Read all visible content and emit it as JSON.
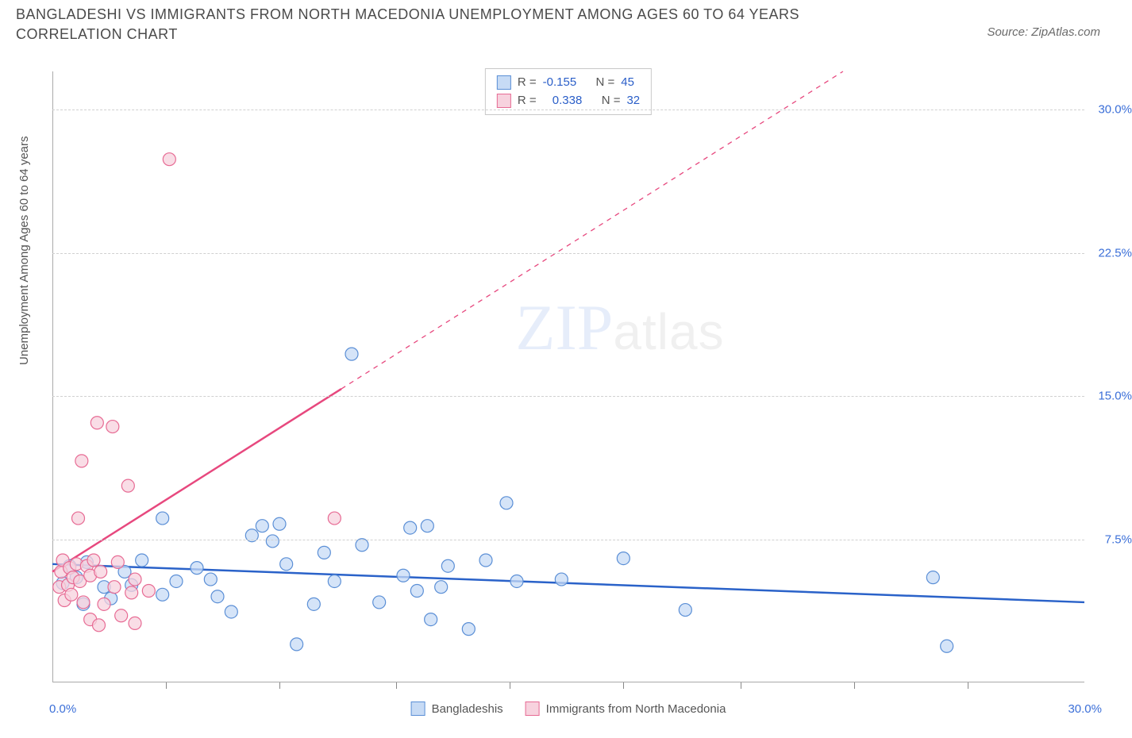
{
  "title": "BANGLADESHI VS IMMIGRANTS FROM NORTH MACEDONIA UNEMPLOYMENT AMONG AGES 60 TO 64 YEARS CORRELATION CHART",
  "source": "Source: ZipAtlas.com",
  "watermark_a": "ZIP",
  "watermark_b": "atlas",
  "y_axis_label": "Unemployment Among Ages 60 to 64 years",
  "chart": {
    "type": "scatter",
    "xlim": [
      0,
      30
    ],
    "ylim": [
      0,
      32
    ],
    "x_tick_positions": [
      3.3,
      6.6,
      10,
      13.3,
      16.6,
      20,
      23.3,
      26.6
    ],
    "y_ticks": [
      7.5,
      15.0,
      22.5,
      30.0
    ],
    "y_tick_labels": [
      "7.5%",
      "15.0%",
      "22.5%",
      "30.0%"
    ],
    "x_min_label": "0.0%",
    "x_max_label": "30.0%",
    "grid_color": "#d0d0d0",
    "background_color": "#ffffff",
    "marker_radius": 8,
    "marker_stroke_width": 1.2,
    "line_width_solid": 2.5,
    "line_width_dash": 1.3
  },
  "series": [
    {
      "key": "bangladeshis",
      "label": "Bangladeshis",
      "fill": "#c7dbf5",
      "stroke": "#5b8fd6",
      "line_color": "#2a62c9",
      "r_label": "R = ",
      "r_value": "-0.155",
      "n_label": "N = ",
      "n_value": "45",
      "regression": {
        "x1": 0,
        "y1": 6.2,
        "x2": 30,
        "y2": 4.2,
        "dash_from_x": 30
      },
      "points": [
        [
          0.3,
          5.2
        ],
        [
          0.5,
          6.1
        ],
        [
          0.7,
          5.5
        ],
        [
          1.0,
          6.3
        ],
        [
          1.5,
          5.0
        ],
        [
          2.1,
          5.8
        ],
        [
          2.6,
          6.4
        ],
        [
          3.2,
          4.6
        ],
        [
          3.2,
          8.6
        ],
        [
          3.6,
          5.3
        ],
        [
          4.6,
          5.4
        ],
        [
          4.8,
          4.5
        ],
        [
          5.2,
          3.7
        ],
        [
          6.4,
          7.4
        ],
        [
          6.6,
          8.3
        ],
        [
          6.8,
          6.2
        ],
        [
          7.1,
          2.0
        ],
        [
          7.6,
          4.1
        ],
        [
          7.9,
          6.8
        ],
        [
          8.2,
          5.3
        ],
        [
          8.7,
          17.2
        ],
        [
          9.0,
          7.2
        ],
        [
          9.5,
          4.2
        ],
        [
          10.2,
          5.6
        ],
        [
          10.4,
          8.1
        ],
        [
          10.6,
          4.8
        ],
        [
          10.9,
          8.2
        ],
        [
          11.0,
          3.3
        ],
        [
          11.3,
          5.0
        ],
        [
          11.5,
          6.1
        ],
        [
          12.1,
          2.8
        ],
        [
          12.6,
          6.4
        ],
        [
          13.2,
          9.4
        ],
        [
          13.5,
          5.3
        ],
        [
          14.8,
          5.4
        ],
        [
          16.6,
          6.5
        ],
        [
          18.4,
          3.8
        ],
        [
          25.6,
          5.5
        ],
        [
          26.0,
          1.9
        ],
        [
          0.9,
          4.1
        ],
        [
          1.7,
          4.4
        ],
        [
          2.3,
          5.1
        ],
        [
          4.2,
          6.0
        ],
        [
          5.8,
          7.7
        ],
        [
          6.1,
          8.2
        ]
      ]
    },
    {
      "key": "macedonia",
      "label": "Immigrants from North Macedonia",
      "fill": "#f7d2de",
      "stroke": "#e76b94",
      "line_color": "#e7487e",
      "r_label": "R = ",
      "r_value": "0.338",
      "n_label": "N = ",
      "n_value": "32",
      "regression": {
        "x1": 0,
        "y1": 5.8,
        "x2": 30,
        "y2": 40.0,
        "dash_from_x": 8.4
      },
      "points": [
        [
          0.2,
          5.0
        ],
        [
          0.25,
          5.8
        ],
        [
          0.3,
          6.4
        ],
        [
          0.35,
          4.3
        ],
        [
          0.45,
          5.1
        ],
        [
          0.5,
          6.0
        ],
        [
          0.55,
          4.6
        ],
        [
          0.6,
          5.5
        ],
        [
          0.7,
          6.2
        ],
        [
          0.75,
          8.6
        ],
        [
          0.8,
          5.3
        ],
        [
          0.85,
          11.6
        ],
        [
          0.9,
          4.2
        ],
        [
          1.0,
          6.1
        ],
        [
          1.1,
          3.3
        ],
        [
          1.1,
          5.6
        ],
        [
          1.2,
          6.4
        ],
        [
          1.3,
          13.6
        ],
        [
          1.35,
          3.0
        ],
        [
          1.4,
          5.8
        ],
        [
          1.5,
          4.1
        ],
        [
          1.75,
          13.4
        ],
        [
          1.8,
          5.0
        ],
        [
          1.9,
          6.3
        ],
        [
          2.0,
          3.5
        ],
        [
          2.2,
          10.3
        ],
        [
          2.3,
          4.7
        ],
        [
          2.4,
          5.4
        ],
        [
          2.4,
          3.1
        ],
        [
          2.8,
          4.8
        ],
        [
          3.4,
          27.4
        ],
        [
          8.2,
          8.6
        ]
      ]
    }
  ]
}
